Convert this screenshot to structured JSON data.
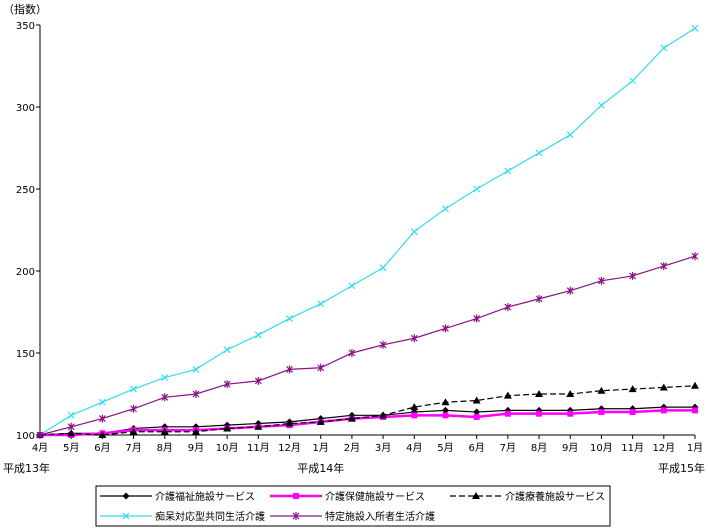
{
  "chart_data": {
    "type": "line",
    "ylabel": "（指数）",
    "ylim": [
      100,
      350
    ],
    "yticks": [
      100,
      150,
      200,
      250,
      300,
      350
    ],
    "grid": false,
    "legend_position": "bottom",
    "categories": [
      "4月",
      "5月",
      "6月",
      "7月",
      "8月",
      "9月",
      "10月",
      "11月",
      "12月",
      "1月",
      "2月",
      "3月",
      "4月",
      "5月",
      "6月",
      "7月",
      "8月",
      "9月",
      "10月",
      "11月",
      "12月",
      "1月"
    ],
    "era_labels": [
      {
        "index": 0,
        "label": "平成13年"
      },
      {
        "index": 9,
        "label": "平成14年"
      },
      {
        "index": 21,
        "label": "平成15年"
      }
    ],
    "series": [
      {
        "name": "介護福祉施設サービス",
        "color": "#000000",
        "marker": "diamond",
        "dash": "",
        "values": [
          100,
          101,
          101,
          104,
          105,
          105,
          106,
          107,
          108,
          110,
          112,
          112,
          114,
          115,
          114,
          115,
          115,
          115,
          116,
          116,
          117,
          117
        ]
      },
      {
        "name": "介護保健施設サービス",
        "color": "#ff00ff",
        "marker": "square",
        "dash": "",
        "values": [
          100,
          100,
          101,
          103,
          103,
          103,
          104,
          105,
          106,
          108,
          110,
          111,
          112,
          112,
          111,
          113,
          113,
          113,
          114,
          114,
          115,
          115
        ]
      },
      {
        "name": "介護療養施設サービス",
        "color": "#000000",
        "marker": "triangle",
        "dash": "6,3",
        "values": [
          100,
          101,
          100,
          102,
          102,
          102,
          104,
          105,
          107,
          108,
          110,
          112,
          117,
          120,
          121,
          124,
          125,
          125,
          127,
          128,
          129,
          130
        ]
      },
      {
        "name": "痴呆対応型共同生活介護",
        "color": "#33ddee",
        "marker": "x",
        "dash": "",
        "values": [
          100,
          112,
          120,
          128,
          135,
          140,
          152,
          161,
          171,
          180,
          191,
          202,
          224,
          238,
          250,
          261,
          272,
          283,
          301,
          316,
          336,
          348
        ]
      },
      {
        "name": "特定施設入所者生活介護",
        "color": "#881188",
        "marker": "star",
        "dash": "",
        "values": [
          100,
          105,
          110,
          116,
          123,
          125,
          131,
          133,
          140,
          141,
          150,
          155,
          159,
          165,
          171,
          178,
          183,
          188,
          194,
          197,
          203,
          209
        ]
      }
    ]
  }
}
